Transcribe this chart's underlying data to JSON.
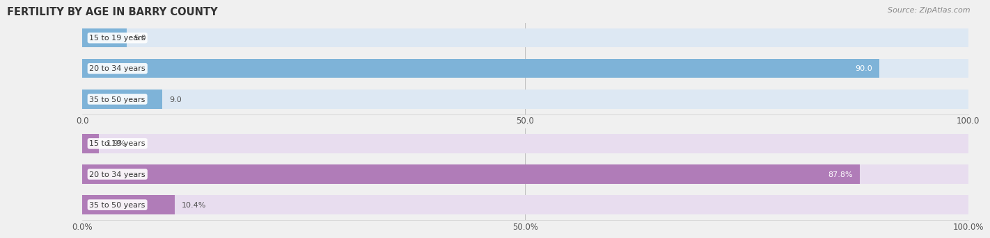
{
  "title": "FERTILITY BY AGE IN BARRY COUNTY",
  "source": "Source: ZipAtlas.com",
  "top_section": {
    "categories": [
      "15 to 19 years",
      "20 to 34 years",
      "35 to 50 years"
    ],
    "values": [
      5.0,
      90.0,
      9.0
    ],
    "bar_color": "#7eb3d8",
    "bar_bg_color": "#dde8f3",
    "xticks": [
      0.0,
      50.0,
      100.0
    ],
    "xtick_labels": [
      "0.0",
      "50.0",
      "100.0"
    ],
    "has_percent": false
  },
  "bottom_section": {
    "categories": [
      "15 to 19 years",
      "20 to 34 years",
      "35 to 50 years"
    ],
    "values": [
      1.9,
      87.8,
      10.4
    ],
    "bar_color": "#b07cb8",
    "bar_bg_color": "#e8ddef",
    "xticks": [
      0.0,
      50.0,
      100.0
    ],
    "xtick_labels": [
      "0.0%",
      "50.0%",
      "100.0%"
    ],
    "has_percent": true
  },
  "fig_width": 14.06,
  "fig_height": 3.31,
  "background_color": "#f0f0f0",
  "bar_height": 0.62,
  "bar_gap": 0.18
}
